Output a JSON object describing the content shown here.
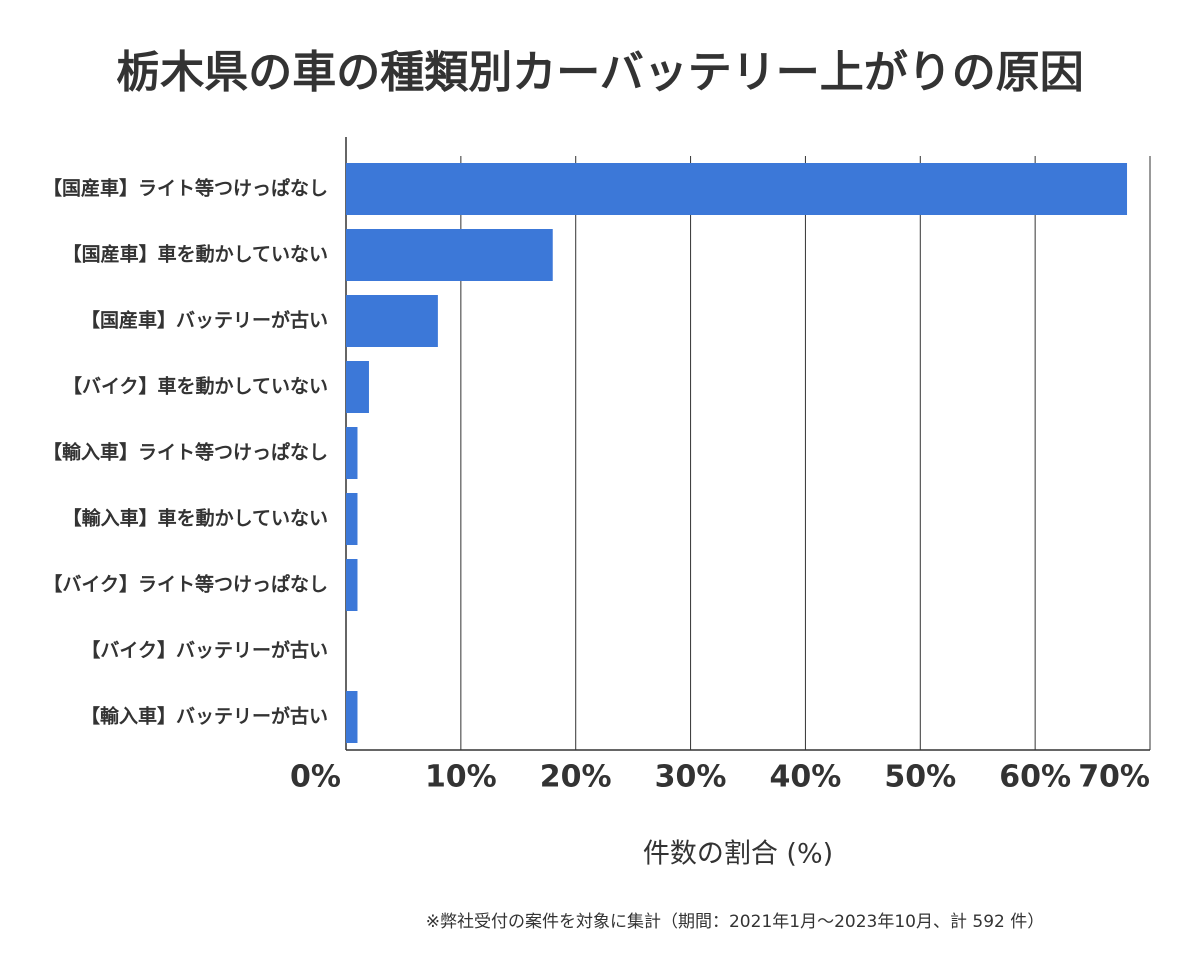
{
  "chart_data": {
    "type": "barh",
    "title": "栃木県の車の種類別カーバッテリー上がりの原因",
    "xlabel": "件数の割合 (%)",
    "note": "※弊社受付の案件を対象に集計（期間：2021年1月～2023年10月、計 592 件）",
    "categories": [
      "【国産車】ライト等つけっぱなし",
      "【国産車】車を動かしていない",
      "【国産車】バッテリーが古い",
      "【バイク】車を動かしていない",
      "【輸入車】ライト等つけっぱなし",
      "【輸入車】車を動かしていない",
      "【バイク】ライト等つけっぱなし",
      "【バイク】バッテリーが古い",
      "【輸入車】バッテリーが古い"
    ],
    "values": [
      68,
      18,
      8,
      2,
      1,
      1,
      1,
      0,
      1
    ],
    "color": "#3c78d8",
    "xlim": [
      0,
      70
    ],
    "xticks": [
      {
        "value": 0,
        "label": "0%"
      },
      {
        "value": 10,
        "label": "10%"
      },
      {
        "value": 20,
        "label": "20%"
      },
      {
        "value": 30,
        "label": "30%"
      },
      {
        "value": 40,
        "label": "40%"
      },
      {
        "value": 50,
        "label": "50%"
      },
      {
        "value": 60,
        "label": "60%"
      },
      {
        "value": 70,
        "label": "70%"
      }
    ],
    "grid": true
  }
}
